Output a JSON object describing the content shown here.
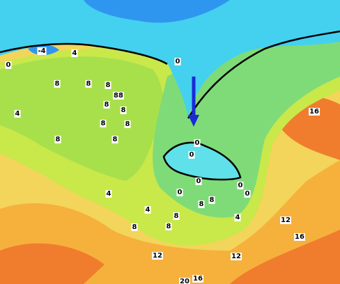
{
  "contour_labels": [
    "-4",
    "4",
    "0",
    "0",
    "8",
    "8",
    "8",
    "88",
    "8",
    "8",
    "4",
    "8",
    "8",
    "8",
    "8",
    "16",
    "0",
    "0",
    "0",
    "0",
    "0",
    "0",
    "4",
    "4",
    "8",
    "8",
    "8",
    "8",
    "8",
    "4",
    "12",
    "16",
    "12",
    "12",
    "20",
    "16"
  ]
}
